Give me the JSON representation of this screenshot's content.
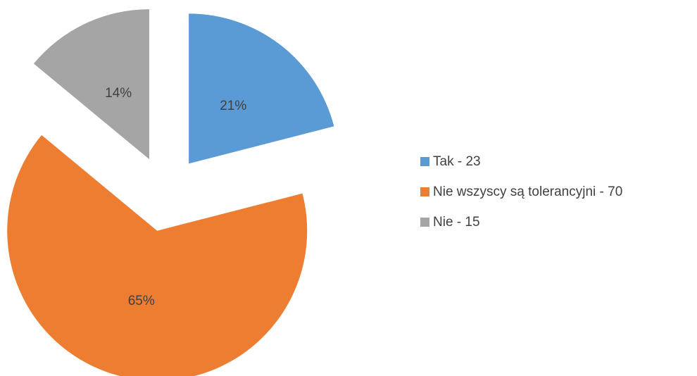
{
  "chart_data": {
    "type": "pie",
    "categories": [
      "Tak - 23",
      "Nie wszyscy są tolerancyjni - 70",
      "Nie - 15"
    ],
    "values": [
      21,
      65,
      14
    ],
    "value_labels": [
      "21%",
      "65%",
      "14%"
    ],
    "colors": [
      "#5b9bd5",
      "#ed7d31",
      "#a5a5a5"
    ],
    "exploded": true,
    "legend": "right"
  }
}
